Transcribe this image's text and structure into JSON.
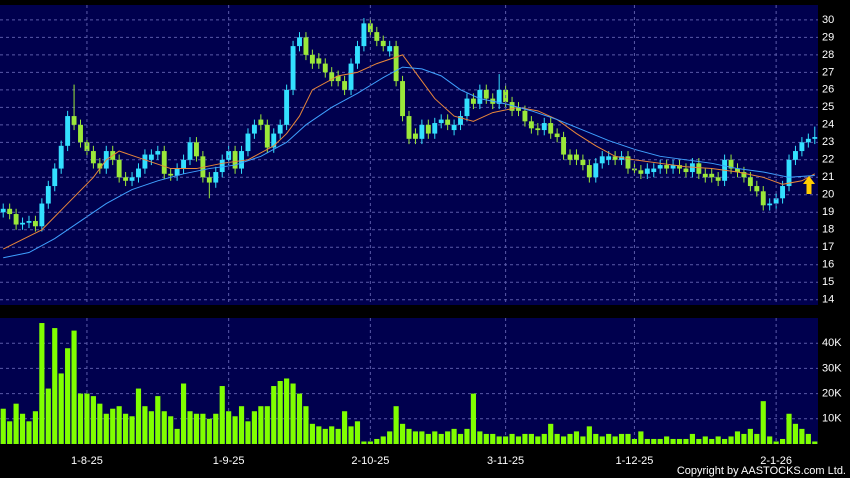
{
  "chart_data": [
    {
      "type": "candlestick",
      "open": [
        19.0,
        19.2,
        18.9,
        18.3,
        18.4,
        18.5,
        18.2,
        19.5,
        20.5,
        21.5,
        22.8,
        24.5,
        24.0,
        23.0,
        22.5,
        21.8,
        21.5,
        22.5,
        22.0,
        21.0,
        20.8,
        21.0,
        21.5,
        22.0,
        22.3,
        22.5,
        21.2,
        21.1,
        21.5,
        22.0,
        23.0,
        22.2,
        21.0,
        20.7,
        21.3,
        22.0,
        22.5,
        21.5,
        22.5,
        23.5,
        24.3,
        24.0,
        22.7,
        23.5,
        24.0,
        26.0,
        28.5,
        29.0,
        28.0,
        27.8,
        27.5,
        27.0,
        26.8,
        26.5,
        26.0,
        27.5,
        28.5,
        29.8,
        29.3,
        28.8,
        28.2,
        28.5,
        26.5,
        24.5,
        23.5,
        23.2,
        24.0,
        23.5,
        24.1,
        24.3,
        23.7,
        24.0,
        24.5,
        25.5,
        25.2,
        26.0,
        25.5,
        25.2,
        26.0,
        25.3,
        25.0,
        24.8,
        24.2,
        23.8,
        23.7,
        24.1,
        23.5,
        23.3,
        22.3,
        22.3,
        22.0,
        21.7,
        21.0,
        21.8,
        22.0,
        22.2,
        22.0,
        22.2,
        21.5,
        21.4,
        21.2,
        21.3,
        21.5,
        21.7,
        21.5,
        21.7,
        21.5,
        21.3,
        21.8,
        21.2,
        21.2,
        21.0,
        20.8,
        22.0,
        21.5,
        21.3,
        21.0,
        20.5,
        20.2,
        19.4,
        19.5,
        19.8,
        20.5,
        22.0,
        22.5,
        23.0,
        23.2
      ],
      "high": [
        19.5,
        19.5,
        19.2,
        18.7,
        18.8,
        18.8,
        19.8,
        20.8,
        21.8,
        23.1,
        24.8,
        26.3,
        24.3,
        23.3,
        22.8,
        22.1,
        22.8,
        22.8,
        22.3,
        21.3,
        21.3,
        21.8,
        22.6,
        22.6,
        22.8,
        22.8,
        21.5,
        21.8,
        22.3,
        23.3,
        23.3,
        22.5,
        21.3,
        21.6,
        22.3,
        22.8,
        22.8,
        22.8,
        23.8,
        24.3,
        24.6,
        24.3,
        23.8,
        24.3,
        26.3,
        28.8,
        29.3,
        29.3,
        28.3,
        28.1,
        27.8,
        27.3,
        27.1,
        26.8,
        27.8,
        28.8,
        30.1,
        30.1,
        29.6,
        29.1,
        28.8,
        28.8,
        26.8,
        24.8,
        23.8,
        24.3,
        24.3,
        24.4,
        24.6,
        24.6,
        24.3,
        24.8,
        25.8,
        25.8,
        26.3,
        26.3,
        25.8,
        26.9,
        26.3,
        25.6,
        25.3,
        25.1,
        24.5,
        24.1,
        24.4,
        24.4,
        23.8,
        23.6,
        22.6,
        22.6,
        22.3,
        22.0,
        22.1,
        22.5,
        22.5,
        22.5,
        22.5,
        22.5,
        21.8,
        21.7,
        21.8,
        21.8,
        22.0,
        22.0,
        22.0,
        22.0,
        21.8,
        22.1,
        22.1,
        21.5,
        21.5,
        21.3,
        22.3,
        22.3,
        21.8,
        21.6,
        21.3,
        20.8,
        20.5,
        19.8,
        20.1,
        20.8,
        22.3,
        22.8,
        23.3,
        23.5,
        23.9
      ],
      "low": [
        18.7,
        18.6,
        18.0,
        18.0,
        18.1,
        17.9,
        17.9,
        19.2,
        20.2,
        21.2,
        22.5,
        23.7,
        22.7,
        22.2,
        21.5,
        21.2,
        21.2,
        21.7,
        20.7,
        20.5,
        20.5,
        20.7,
        21.2,
        21.7,
        22.0,
        20.9,
        20.8,
        20.8,
        21.2,
        21.7,
        21.9,
        20.7,
        19.8,
        20.4,
        21.0,
        21.7,
        21.2,
        21.2,
        22.2,
        23.2,
        23.7,
        22.4,
        22.4,
        23.2,
        23.7,
        25.7,
        28.2,
        27.7,
        27.2,
        27.2,
        26.7,
        26.2,
        26.2,
        25.7,
        25.7,
        27.2,
        28.2,
        29.0,
        28.5,
        28.2,
        27.9,
        26.2,
        24.2,
        22.9,
        22.9,
        22.9,
        23.2,
        23.2,
        23.8,
        23.7,
        23.4,
        23.7,
        24.2,
        24.9,
        24.9,
        25.2,
        24.9,
        24.9,
        25.0,
        24.5,
        24.5,
        23.9,
        23.5,
        23.4,
        23.4,
        23.2,
        23.0,
        22.0,
        21.7,
        21.7,
        21.4,
        20.7,
        20.7,
        21.5,
        21.7,
        21.7,
        21.7,
        21.2,
        21.1,
        20.9,
        20.9,
        21.0,
        21.2,
        21.2,
        21.2,
        21.2,
        21.0,
        21.0,
        20.9,
        20.7,
        20.7,
        20.5,
        20.5,
        21.2,
        21.0,
        20.7,
        20.2,
        19.9,
        19.1,
        19.1,
        19.2,
        19.5,
        20.2,
        21.7,
        22.2,
        22.7,
        22.9
      ],
      "close": [
        19.2,
        18.9,
        18.3,
        18.4,
        18.5,
        18.2,
        19.5,
        20.5,
        21.5,
        22.8,
        24.5,
        24.0,
        23.0,
        22.5,
        21.8,
        21.5,
        22.5,
        22.0,
        21.0,
        20.8,
        21.0,
        21.5,
        22.3,
        22.3,
        22.5,
        21.2,
        21.1,
        21.5,
        22.0,
        23.0,
        22.2,
        21.0,
        20.7,
        21.3,
        22.0,
        22.5,
        21.5,
        22.5,
        23.5,
        24.0,
        24.0,
        22.7,
        23.5,
        24.0,
        26.0,
        28.5,
        29.0,
        28.0,
        27.5,
        27.5,
        27.0,
        26.5,
        26.5,
        26.0,
        27.5,
        28.5,
        29.8,
        29.3,
        28.8,
        28.5,
        28.5,
        26.5,
        24.5,
        23.2,
        23.2,
        24.0,
        23.5,
        24.1,
        24.3,
        24.0,
        24.0,
        24.5,
        25.5,
        25.2,
        26.0,
        25.5,
        25.2,
        26.0,
        25.3,
        24.8,
        24.8,
        24.2,
        23.8,
        23.7,
        24.1,
        23.5,
        23.3,
        22.3,
        22.0,
        22.0,
        21.7,
        21.0,
        21.8,
        22.2,
        22.2,
        22.0,
        22.2,
        21.5,
        21.4,
        21.2,
        21.5,
        21.5,
        21.7,
        21.5,
        21.7,
        21.5,
        21.3,
        21.8,
        21.2,
        21.0,
        21.0,
        20.8,
        22.0,
        21.5,
        21.3,
        21.0,
        20.5,
        20.2,
        19.4,
        19.5,
        19.8,
        20.5,
        22.0,
        22.5,
        23.0,
        23.2,
        23.3
      ],
      "up_color": "#33e0ff",
      "down_color": "#9be83a",
      "lines": [
        {
          "color": "#e8863a",
          "x": [
            0,
            6,
            10,
            14,
            16,
            18,
            22,
            26,
            30,
            34,
            38,
            42,
            44,
            46,
            48,
            52,
            55,
            58,
            62,
            64,
            67,
            70,
            73,
            76,
            80,
            83,
            86,
            89,
            92,
            95,
            98,
            102,
            106,
            110,
            114,
            118,
            121,
            124,
            126
          ],
          "values": [
            16.9,
            18,
            19.5,
            21,
            22,
            22.5,
            22,
            21.5,
            21.5,
            21.8,
            22,
            22.8,
            23.5,
            24.5,
            26,
            26.8,
            27,
            27.5,
            28,
            27,
            25.5,
            24.5,
            24.2,
            24.7,
            25,
            24.8,
            24.3,
            23.5,
            22.8,
            22.2,
            22,
            21.8,
            21.6,
            21.5,
            21.3,
            21,
            20.6,
            20.8,
            21.2
          ]
        },
        {
          "color": "#3fa0ff",
          "x": [
            0,
            4,
            8,
            12,
            16,
            20,
            24,
            28,
            32,
            36,
            40,
            44,
            47,
            51,
            55,
            59,
            62,
            65,
            68,
            71,
            74,
            78,
            82,
            86,
            90,
            94,
            98,
            102,
            106,
            110,
            114,
            118,
            122,
            126
          ],
          "values": [
            16.4,
            16.7,
            17.5,
            18.5,
            19.5,
            20.3,
            20.8,
            21.2,
            21.5,
            21.7,
            22.2,
            23,
            24,
            25,
            25.8,
            26.7,
            27.3,
            27.2,
            26.8,
            26,
            25.5,
            25.2,
            24.8,
            24.3,
            23.7,
            23.1,
            22.6,
            22.2,
            22,
            21.8,
            21.5,
            21.3,
            21,
            21.1
          ]
        }
      ],
      "ylim": [
        13.7,
        30.85
      ],
      "yticks": [
        14,
        15,
        16,
        17,
        18,
        19,
        20,
        21,
        22,
        23,
        24,
        25,
        26,
        27,
        28,
        29,
        30
      ],
      "grid": true
    },
    {
      "type": "bar",
      "color": "#80ff00",
      "values": [
        14000,
        9000,
        16000,
        12000,
        9000,
        13000,
        48000,
        22000,
        46000,
        28000,
        38000,
        45000,
        20000,
        20000,
        19000,
        16000,
        12000,
        14000,
        15000,
        12000,
        11000,
        22000,
        15000,
        13000,
        19000,
        13000,
        11000,
        6000,
        24000,
        13000,
        12000,
        12000,
        10000,
        12000,
        23000,
        13000,
        11000,
        15000,
        9000,
        13000,
        15000,
        15000,
        23000,
        25000,
        26000,
        24000,
        20000,
        15000,
        8000,
        7000,
        6000,
        7000,
        6000,
        13000,
        7000,
        9000,
        1000,
        1000,
        2000,
        3000,
        5000,
        15000,
        8000,
        6000,
        5000,
        5000,
        4000,
        5000,
        4000,
        5000,
        6000,
        4000,
        6000,
        20000,
        5000,
        4000,
        4000,
        3000,
        3000,
        4000,
        3000,
        4000,
        4000,
        3000,
        4000,
        8000,
        4000,
        3000,
        4000,
        5000,
        3000,
        7000,
        4000,
        3000,
        4000,
        3000,
        4000,
        4000,
        2000,
        5000,
        2000,
        2000,
        2000,
        3000,
        2000,
        2000,
        2000,
        4000,
        2000,
        3000,
        2000,
        3000,
        2000,
        3000,
        5000,
        4000,
        6000,
        4000,
        17000,
        3000,
        1000,
        2000,
        12000,
        8000,
        6000,
        4000,
        1000
      ],
      "ylim": [
        0,
        50000
      ],
      "yticks": [
        {
          "value": 10000,
          "label": "10K"
        },
        {
          "value": 20000,
          "label": "20K"
        },
        {
          "value": 30000,
          "label": "30K"
        },
        {
          "value": 40000,
          "label": "40K"
        }
      ],
      "xticks": [
        {
          "value": 13,
          "label": "1-8-25"
        },
        {
          "value": 35,
          "label": "1-9-25"
        },
        {
          "value": 57,
          "label": "2-10-25"
        },
        {
          "value": 78,
          "label": "3-11-25"
        },
        {
          "value": 98,
          "label": "1-12-25"
        },
        {
          "value": 120,
          "label": "2-1-26"
        }
      ],
      "grid": true
    }
  ],
  "footer": "Copyright by AASTOCKS.com Ltd."
}
